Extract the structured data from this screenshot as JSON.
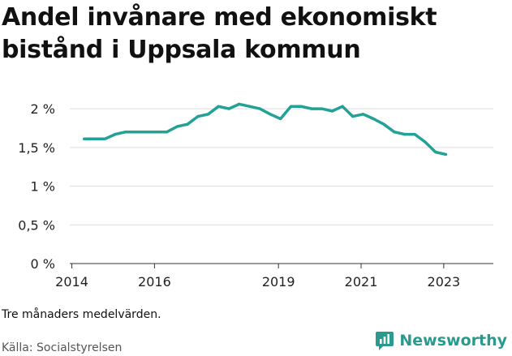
{
  "title": "Andel invånare med ekonomiskt bistånd i Uppsala kommun",
  "note": "Tre månaders medelvärden.",
  "source": "Källa: Socialstyrelsen",
  "brand": {
    "name": "Newsworthy",
    "icon": "newsworthy-logo-icon",
    "color": "#2a9a8f"
  },
  "chart_data": {
    "type": "line",
    "title": "Andel invånare med ekonomiskt bistånd i Uppsala kommun",
    "xlabel": "",
    "ylabel": "",
    "ylim": [
      0,
      2.2
    ],
    "xlim": [
      2013.95,
      2024.2
    ],
    "y_ticks": [
      {
        "value": 0,
        "label": "0 %"
      },
      {
        "value": 0.5,
        "label": "0,5 %"
      },
      {
        "value": 1,
        "label": "1 %"
      },
      {
        "value": 1.5,
        "label": "1,5 %"
      },
      {
        "value": 2,
        "label": "2 %"
      }
    ],
    "x_ticks": [
      {
        "value": 2014,
        "label": "2014"
      },
      {
        "value": 2016,
        "label": "2016"
      },
      {
        "value": 2019,
        "label": "2019"
      },
      {
        "value": 2021,
        "label": "2021"
      },
      {
        "value": 2023,
        "label": "2023"
      }
    ],
    "grid": "horizontal",
    "line_color": "#22a196",
    "series": [
      {
        "name": "",
        "x": [
          2014.3,
          2014.55,
          2014.8,
          2015.05,
          2015.3,
          2015.55,
          2015.8,
          2016.05,
          2016.3,
          2016.55,
          2016.8,
          2017.05,
          2017.3,
          2017.55,
          2017.8,
          2018.05,
          2018.3,
          2018.55,
          2018.8,
          2019.05,
          2019.3,
          2019.55,
          2019.8,
          2020.05,
          2020.3,
          2020.55,
          2020.8,
          2021.05,
          2021.3,
          2021.55,
          2021.8,
          2022.05,
          2022.3,
          2022.55,
          2022.8,
          2023.05
        ],
        "values": [
          1.61,
          1.61,
          1.61,
          1.67,
          1.7,
          1.7,
          1.7,
          1.7,
          1.7,
          1.77,
          1.8,
          1.9,
          1.93,
          2.03,
          2.0,
          2.06,
          2.03,
          2.0,
          1.93,
          1.87,
          2.03,
          2.03,
          2.0,
          2.0,
          1.97,
          2.03,
          1.9,
          1.93,
          1.87,
          1.8,
          1.7,
          1.67,
          1.67,
          1.57,
          1.44,
          1.41
        ]
      }
    ]
  }
}
